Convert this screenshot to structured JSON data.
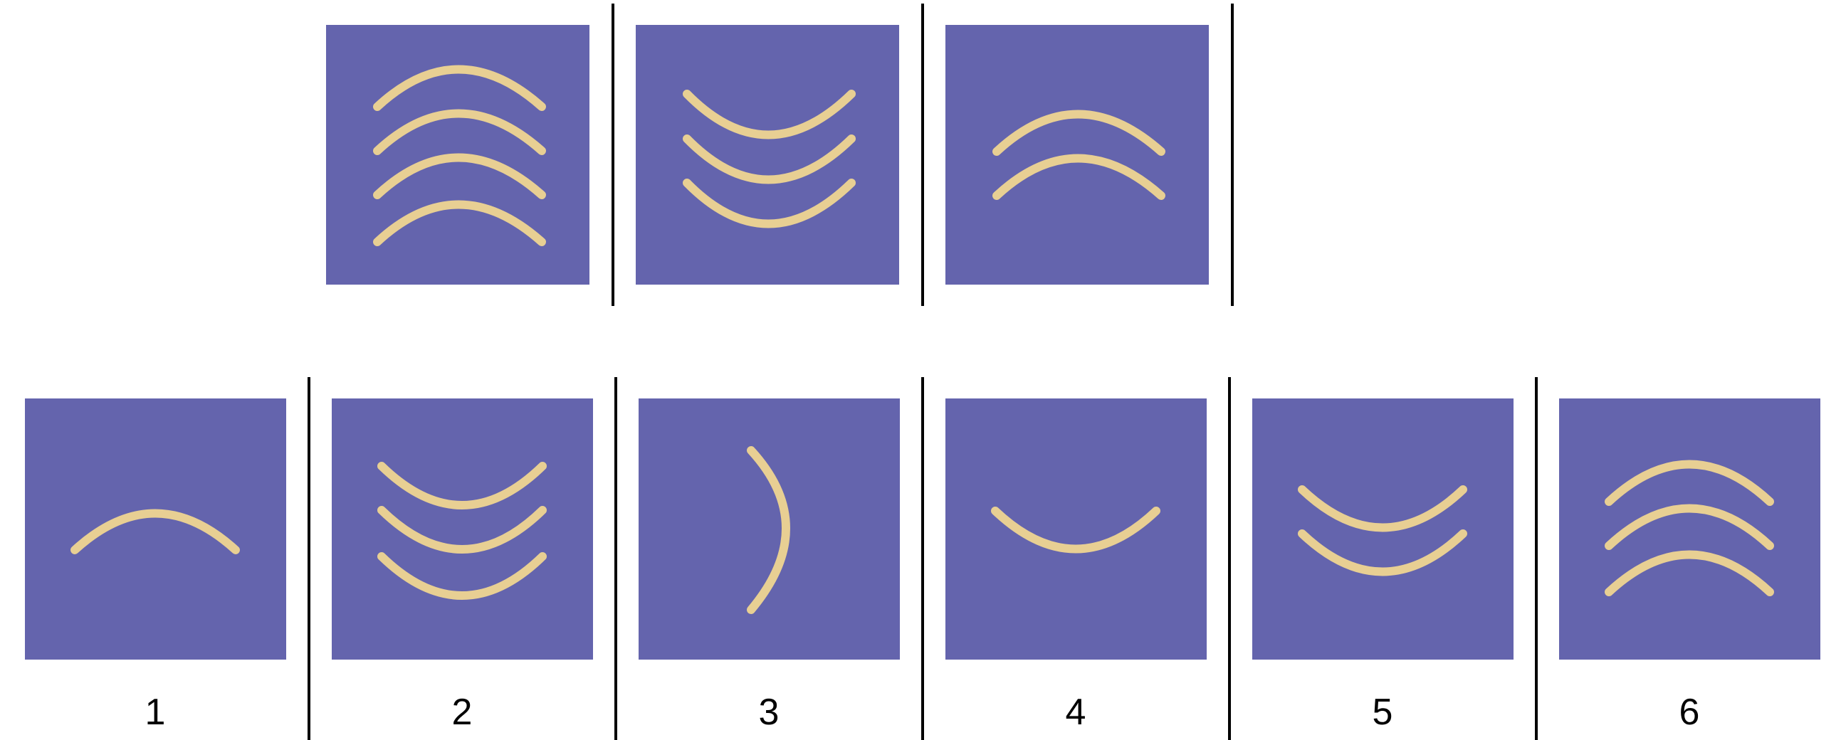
{
  "colors": {
    "tile_background": "#6464ad",
    "arc": "#e8cf93",
    "divider": "#000000"
  },
  "question_row": [
    {
      "arcs": 4,
      "orientation": "arch-up"
    },
    {
      "arcs": 3,
      "orientation": "bowl-down"
    },
    {
      "arcs": 2,
      "orientation": "arch-up"
    }
  ],
  "answer_options": [
    {
      "label": "1",
      "arcs": 1,
      "orientation": "arch-up"
    },
    {
      "label": "2",
      "arcs": 3,
      "orientation": "bowl-down"
    },
    {
      "label": "3",
      "arcs": 1,
      "orientation": "curve-right"
    },
    {
      "label": "4",
      "arcs": 1,
      "orientation": "bowl-down"
    },
    {
      "label": "5",
      "arcs": 2,
      "orientation": "bowl-down"
    },
    {
      "label": "6",
      "arcs": 3,
      "orientation": "arch-up"
    }
  ]
}
